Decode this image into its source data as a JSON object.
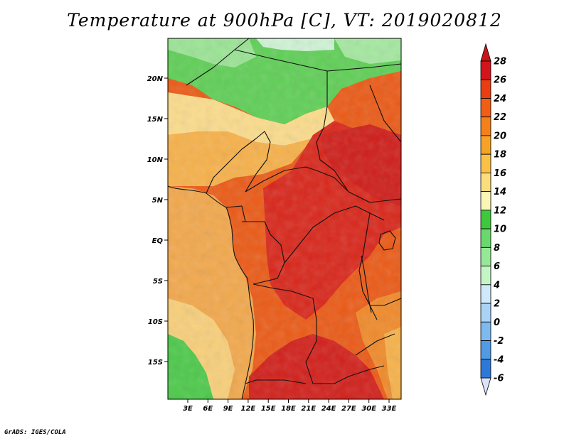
{
  "title": "Temperature at 900hPa [C], VT: 2019020812",
  "credit": "GrADS: IGES/COLA",
  "map": {
    "lat_ticks": [
      "20N",
      "15N",
      "10N",
      "5N",
      "EQ",
      "5S",
      "10S",
      "15S"
    ],
    "lon_ticks": [
      "3E",
      "6E",
      "9E",
      "12E",
      "15E",
      "18E",
      "21E",
      "24E",
      "27E",
      "30E",
      "33E"
    ]
  },
  "colorbar": {
    "labels": [
      "28",
      "26",
      "24",
      "22",
      "20",
      "18",
      "16",
      "14",
      "12",
      "10",
      "8",
      "6",
      "4",
      "2",
      "0",
      "-2",
      "-4",
      "-6"
    ],
    "colors": [
      "#d4141b",
      "#eb3c12",
      "#f25d14",
      "#f48019",
      "#f6a225",
      "#fac146",
      "#fbdd7d",
      "#fbf5b6",
      "#3ec83c",
      "#69d96b",
      "#95e896",
      "#c4f5c4",
      "#cfe8fb",
      "#a9d3f6",
      "#7cbaf0",
      "#509ae6",
      "#2e79d8",
      "#1a5bc9",
      "#1441ab",
      "#0c2a8a",
      "#08135a"
    ],
    "end_colors": {
      "top": "#c81418",
      "bottom": "#dbe3fa"
    }
  }
}
